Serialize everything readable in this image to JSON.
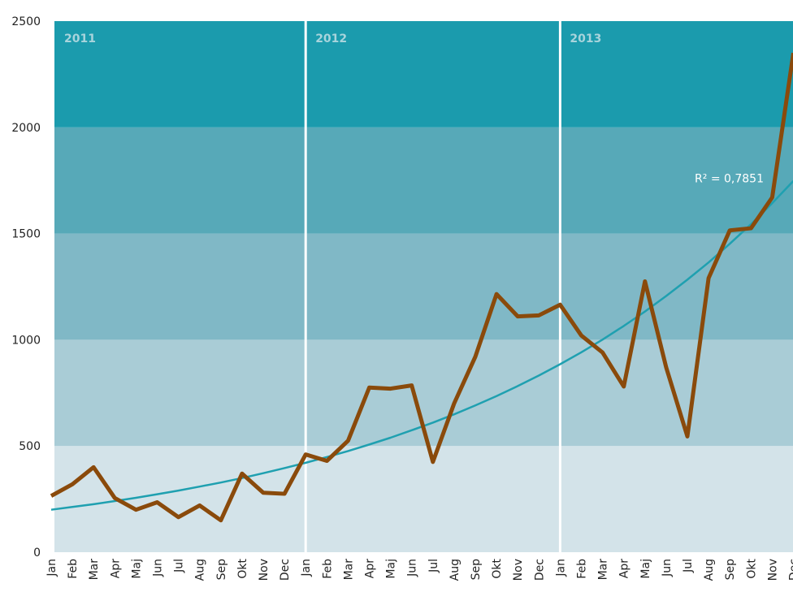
{
  "chart_data": {
    "type": "line",
    "categories": [
      "Jan",
      "Feb",
      "Mar",
      "Apr",
      "Maj",
      "Jun",
      "Jul",
      "Aug",
      "Sep",
      "Okt",
      "Nov",
      "Dec",
      "Jan",
      "Feb",
      "Mar",
      "Apr",
      "Maj",
      "Jun",
      "Jul",
      "Aug",
      "Sep",
      "Okt",
      "Nov",
      "Dec",
      "Jan",
      "Feb",
      "Mar",
      "Apr",
      "Maj",
      "Jun",
      "Jul",
      "Aug",
      "Sep",
      "Okt",
      "Nov",
      "Dec"
    ],
    "year_labels": [
      "2011",
      "2012",
      "2013"
    ],
    "series": [
      {
        "color": "#8a4a0b",
        "values": [
          265,
          320,
          400,
          255,
          200,
          235,
          165,
          220,
          150,
          370,
          280,
          275,
          460,
          430,
          525,
          775,
          770,
          785,
          425,
          700,
          920,
          1215,
          1110,
          1115,
          1165,
          1020,
          940,
          780,
          1275,
          870,
          545,
          1290,
          1515,
          1525,
          1670,
          2350
        ]
      },
      {
        "color": "#1fa0b0",
        "values": [
          200,
          213,
          226,
          241,
          256,
          273,
          290,
          309,
          328,
          349,
          372,
          396,
          421,
          448,
          476,
          507,
          539,
          574,
          610,
          649,
          691,
          735,
          782,
          832,
          885,
          941,
          1001,
          1065,
          1133,
          1206,
          1283,
          1364,
          1452,
          1544,
          1643,
          1748
        ]
      }
    ],
    "annotation": "R² = 0,7851",
    "band_colors": [
      "#d3e3e9",
      "#a9ccd6",
      "#80b8c6",
      "#57a9b8",
      "#1b9bad"
    ],
    "ylim": [
      0,
      2500
    ],
    "yticks": [
      0,
      500,
      1000,
      1500,
      2000,
      2500
    ]
  }
}
